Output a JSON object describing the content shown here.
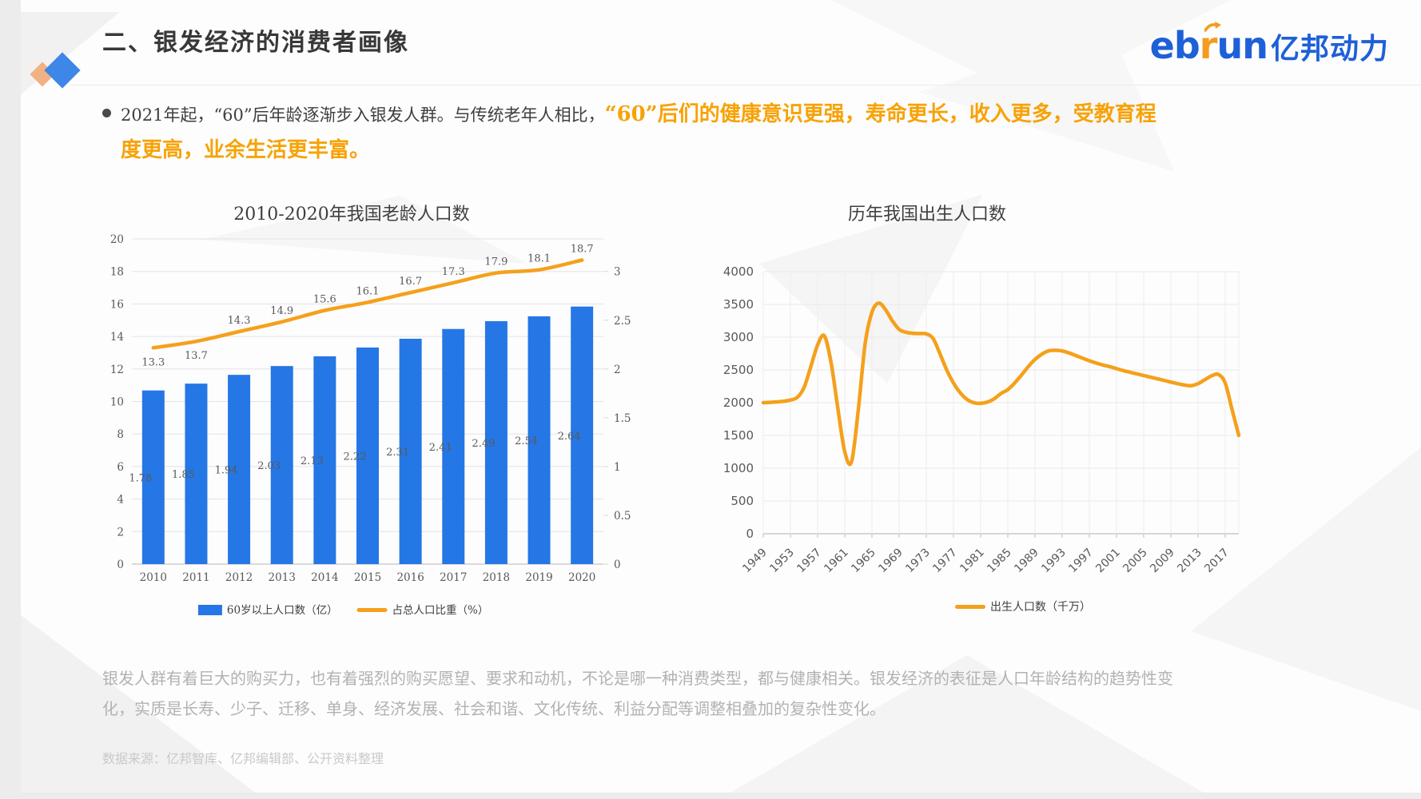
{
  "slide": {
    "title": "二、银发经济的消费者画像",
    "logo": {
      "eb": "eb",
      "r": "r",
      "un": "un",
      "cn": "亿邦动力"
    },
    "bullet": {
      "normal": "2021年起，“60”后年龄逐渐步入银发人群。与传统老年人相比，",
      "highlight": "“60”后们的健康意识更强，寿命更长，收入更多，受教育程度更高，业余生活更丰富。"
    },
    "footer_paragraph": "银发人群有着巨大的购买力，也有着强烈的购买愿望、要求和动机，不论是哪一种消费类型，都与健康相关。银发经济的表征是人口年龄结构的趋势性变化，实质是长寿、少子、迁移、单身、经济发展、社会和谐、文化传统、利益分配等调整相叠加的复杂性变化。",
    "source": "数据来源：亿邦智库、亿邦编辑部、公开资料整理"
  },
  "colors": {
    "bar_blue": "#2577E5",
    "accent_orange": "#F5A01B",
    "logo_blue": "#1D60D8",
    "highlight_orange": "#F7A205"
  },
  "chart_data": [
    {
      "type": "bar-line-combo",
      "title": "2010-2020年我国老龄人口数",
      "categories": [
        "2010",
        "2011",
        "2012",
        "2013",
        "2014",
        "2015",
        "2016",
        "2017",
        "2018",
        "2019",
        "2020"
      ],
      "series": [
        {
          "name": "60岁以上人口数（亿）",
          "type": "bar",
          "axis": "right",
          "values": [
            1.78,
            1.85,
            1.94,
            2.03,
            2.13,
            2.22,
            2.31,
            2.41,
            2.49,
            2.54,
            2.64
          ]
        },
        {
          "name": "占总人口比重（%）",
          "type": "line",
          "axis": "left",
          "values": [
            13.3,
            13.7,
            14.3,
            14.9,
            15.6,
            16.1,
            16.7,
            17.3,
            17.9,
            18.1,
            18.7
          ]
        }
      ],
      "left_axis": {
        "min": 0,
        "max": 20,
        "step": 2
      },
      "right_axis": {
        "min": 0,
        "max": 3,
        "step": 0.5
      },
      "legend_position": "bottom",
      "grid": "horizontal"
    },
    {
      "type": "line",
      "title": "历年我国出生人口数",
      "series": [
        {
          "name": "出生人口数（千万）",
          "x": [
            1949,
            1950,
            1951,
            1952,
            1953,
            1954,
            1955,
            1956,
            1957,
            1958,
            1959,
            1960,
            1961,
            1962,
            1963,
            1964,
            1965,
            1966,
            1967,
            1968,
            1969,
            1970,
            1971,
            1972,
            1973,
            1974,
            1975,
            1976,
            1977,
            1978,
            1979,
            1980,
            1981,
            1982,
            1983,
            1984,
            1985,
            1986,
            1987,
            1988,
            1989,
            1990,
            1991,
            1992,
            1993,
            1994,
            1995,
            1996,
            1997,
            1998,
            1999,
            2000,
            2001,
            2002,
            2003,
            2004,
            2005,
            2006,
            2007,
            2008,
            2009,
            2010,
            2011,
            2012,
            2013,
            2014,
            2015,
            2016,
            2017,
            2018,
            2019
          ],
          "values": [
            2000,
            2005,
            2012,
            2022,
            2040,
            2080,
            2230,
            2550,
            2880,
            3020,
            2600,
            1900,
            1250,
            1100,
            1900,
            2900,
            3380,
            3520,
            3420,
            3250,
            3120,
            3075,
            3060,
            3055,
            3050,
            2980,
            2750,
            2500,
            2300,
            2150,
            2050,
            2000,
            1990,
            2010,
            2060,
            2140,
            2200,
            2300,
            2420,
            2550,
            2660,
            2740,
            2790,
            2800,
            2790,
            2760,
            2720,
            2680,
            2640,
            2605,
            2575,
            2550,
            2520,
            2490,
            2465,
            2440,
            2415,
            2390,
            2365,
            2340,
            2315,
            2290,
            2270,
            2260,
            2290,
            2350,
            2410,
            2430,
            2300,
            1900,
            1500
          ]
        }
      ],
      "y_axis": {
        "min": 0,
        "max": 4000,
        "step": 500
      },
      "x_ticks": [
        "1949",
        "1953",
        "1957",
        "1961",
        "1965",
        "1969",
        "1973",
        "1977",
        "1981",
        "1985",
        "1989",
        "1993",
        "1997",
        "2001",
        "2005",
        "2009",
        "2013",
        "2017"
      ],
      "legend_position": "bottom",
      "grid": "both"
    }
  ]
}
